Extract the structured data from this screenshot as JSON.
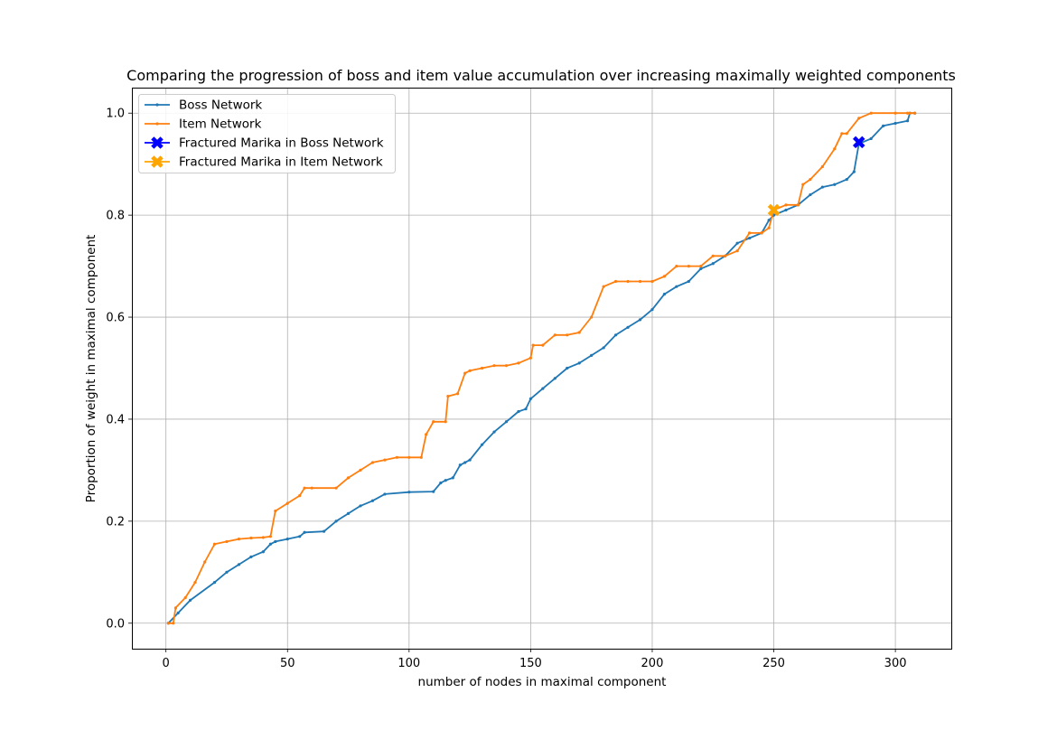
{
  "chart_data": {
    "type": "line",
    "title": "Comparing the progression of boss and item value accumulation over increasing maximally weighted components",
    "xlabel": "number of nodes in maximal component",
    "ylabel": "Proportion of weight in maximal component",
    "xlim": [
      -14,
      323
    ],
    "ylim": [
      -0.05,
      1.05
    ],
    "xticks": [
      0,
      50,
      100,
      150,
      200,
      250,
      300
    ],
    "yticks": [
      0.0,
      0.2,
      0.4,
      0.6,
      0.8,
      1.0
    ],
    "xtick_labels": [
      "0",
      "50",
      "100",
      "150",
      "200",
      "250",
      "300"
    ],
    "ytick_labels": [
      "0.0",
      "0.2",
      "0.4",
      "0.6",
      "0.8",
      "1.0"
    ],
    "grid": true,
    "legend_position": "top-left",
    "series": [
      {
        "name": "Boss Network",
        "color": "#1f77b4",
        "x": [
          1,
          5,
          10,
          20,
          25,
          30,
          35,
          40,
          43,
          45,
          50,
          55,
          57,
          65,
          70,
          75,
          80,
          85,
          90,
          100,
          110,
          113,
          115,
          118,
          121,
          123,
          125,
          130,
          135,
          140,
          145,
          148,
          150,
          155,
          160,
          165,
          170,
          175,
          180,
          185,
          190,
          195,
          200,
          205,
          210,
          215,
          220,
          225,
          230,
          235,
          240,
          245,
          248,
          250,
          255,
          260,
          265,
          270,
          275,
          280,
          283,
          285,
          290,
          295,
          300,
          305,
          306,
          308
        ],
        "y": [
          0.0,
          0.02,
          0.045,
          0.08,
          0.1,
          0.115,
          0.13,
          0.14,
          0.155,
          0.16,
          0.165,
          0.17,
          0.178,
          0.18,
          0.2,
          0.215,
          0.23,
          0.24,
          0.253,
          0.257,
          0.258,
          0.275,
          0.28,
          0.285,
          0.31,
          0.315,
          0.32,
          0.35,
          0.375,
          0.395,
          0.415,
          0.42,
          0.44,
          0.46,
          0.48,
          0.5,
          0.51,
          0.525,
          0.54,
          0.565,
          0.58,
          0.595,
          0.615,
          0.645,
          0.66,
          0.67,
          0.695,
          0.705,
          0.72,
          0.745,
          0.755,
          0.765,
          0.79,
          0.8,
          0.81,
          0.82,
          0.84,
          0.855,
          0.86,
          0.87,
          0.885,
          0.94,
          0.95,
          0.975,
          0.98,
          0.985,
          1.0,
          1.0
        ]
      },
      {
        "name": "Item Network",
        "color": "#ff7f0e",
        "x": [
          1,
          3,
          4,
          8,
          12,
          16,
          20,
          25,
          30,
          35,
          40,
          43,
          45,
          50,
          55,
          57,
          60,
          70,
          75,
          80,
          85,
          90,
          95,
          100,
          105,
          107,
          110,
          115,
          116,
          120,
          123,
          125,
          130,
          135,
          140,
          145,
          150,
          151,
          155,
          160,
          165,
          170,
          175,
          180,
          185,
          190,
          195,
          200,
          205,
          210,
          215,
          220,
          225,
          230,
          235,
          240,
          245,
          248,
          250,
          255,
          260,
          262,
          265,
          270,
          275,
          278,
          280,
          285,
          290,
          300,
          305,
          306,
          308
        ],
        "y": [
          0.0,
          0.0,
          0.03,
          0.05,
          0.08,
          0.12,
          0.155,
          0.16,
          0.165,
          0.167,
          0.168,
          0.17,
          0.22,
          0.235,
          0.25,
          0.265,
          0.265,
          0.265,
          0.285,
          0.3,
          0.315,
          0.32,
          0.325,
          0.325,
          0.325,
          0.37,
          0.395,
          0.395,
          0.445,
          0.45,
          0.49,
          0.495,
          0.5,
          0.505,
          0.505,
          0.51,
          0.52,
          0.545,
          0.545,
          0.565,
          0.565,
          0.57,
          0.6,
          0.66,
          0.67,
          0.67,
          0.67,
          0.67,
          0.68,
          0.7,
          0.7,
          0.7,
          0.72,
          0.72,
          0.73,
          0.765,
          0.765,
          0.775,
          0.81,
          0.82,
          0.82,
          0.86,
          0.87,
          0.895,
          0.93,
          0.96,
          0.96,
          0.99,
          1.0,
          1.0,
          1.0,
          1.0,
          1.0
        ]
      },
      {
        "name": "Fractured Marika in Boss Network",
        "color": "#0000ff",
        "marker": "X",
        "x": [
          285
        ],
        "y": [
          0.943
        ]
      },
      {
        "name": "Fractured Marika in Item Network",
        "color": "#ffa500",
        "marker": "X",
        "x": [
          250
        ],
        "y": [
          0.81
        ]
      }
    ]
  }
}
